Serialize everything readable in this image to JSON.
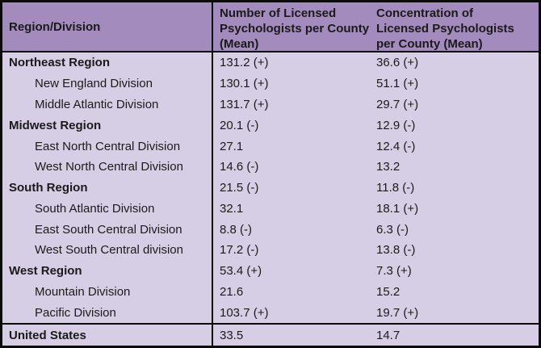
{
  "colors": {
    "header_bg": "#a48bbd",
    "body_bg": "#d6cee5",
    "border": "#0a0a0a",
    "text": "#1a1a1a"
  },
  "chart_data": {
    "type": "table",
    "title": "",
    "columns": [
      "Region/Division",
      "Number of Licensed Psychologists per County (Mean)",
      "Concentration of Licensed Psychologists per County (Mean)"
    ],
    "rows": [
      {
        "label": "Northeast Region",
        "level": "region",
        "values": [
          "131.2 (+)",
          "36.6 (+)"
        ]
      },
      {
        "label": "New England Division",
        "level": "division",
        "values": [
          "130.1 (+)",
          "51.1 (+)"
        ]
      },
      {
        "label": "Middle Atlantic Division",
        "level": "division",
        "values": [
          "131.7 (+)",
          "29.7 (+)"
        ]
      },
      {
        "label": "Midwest Region",
        "level": "region",
        "values": [
          "20.1 (-)",
          "12.9 (-)"
        ]
      },
      {
        "label": "East North Central Division",
        "level": "division",
        "values": [
          "27.1",
          "12.4 (-)"
        ]
      },
      {
        "label": "West North Central Division",
        "level": "division",
        "values": [
          "14.6 (-)",
          "13.2"
        ]
      },
      {
        "label": "South Region",
        "level": "region",
        "values": [
          "21.5 (-)",
          "11.8 (-)"
        ]
      },
      {
        "label": "South Atlantic Division",
        "level": "division",
        "values": [
          "32.1",
          "18.1 (+)"
        ]
      },
      {
        "label": "East South Central Division",
        "level": "division",
        "values": [
          "8.8 (-)",
          "6.3 (-)"
        ]
      },
      {
        "label": "West South Central division",
        "level": "division",
        "values": [
          "17.2 (-)",
          "13.8 (-)"
        ]
      },
      {
        "label": "West Region",
        "level": "region",
        "values": [
          "53.4 (+)",
          "7.3 (+)"
        ]
      },
      {
        "label": "Mountain Division",
        "level": "division",
        "values": [
          "21.6",
          "15.2"
        ]
      },
      {
        "label": "Pacific Division",
        "level": "division",
        "values": [
          "103.7 (+)",
          "19.7 (+)"
        ]
      },
      {
        "label": "United States",
        "level": "total",
        "values": [
          "33.5",
          "14.7"
        ]
      }
    ]
  }
}
